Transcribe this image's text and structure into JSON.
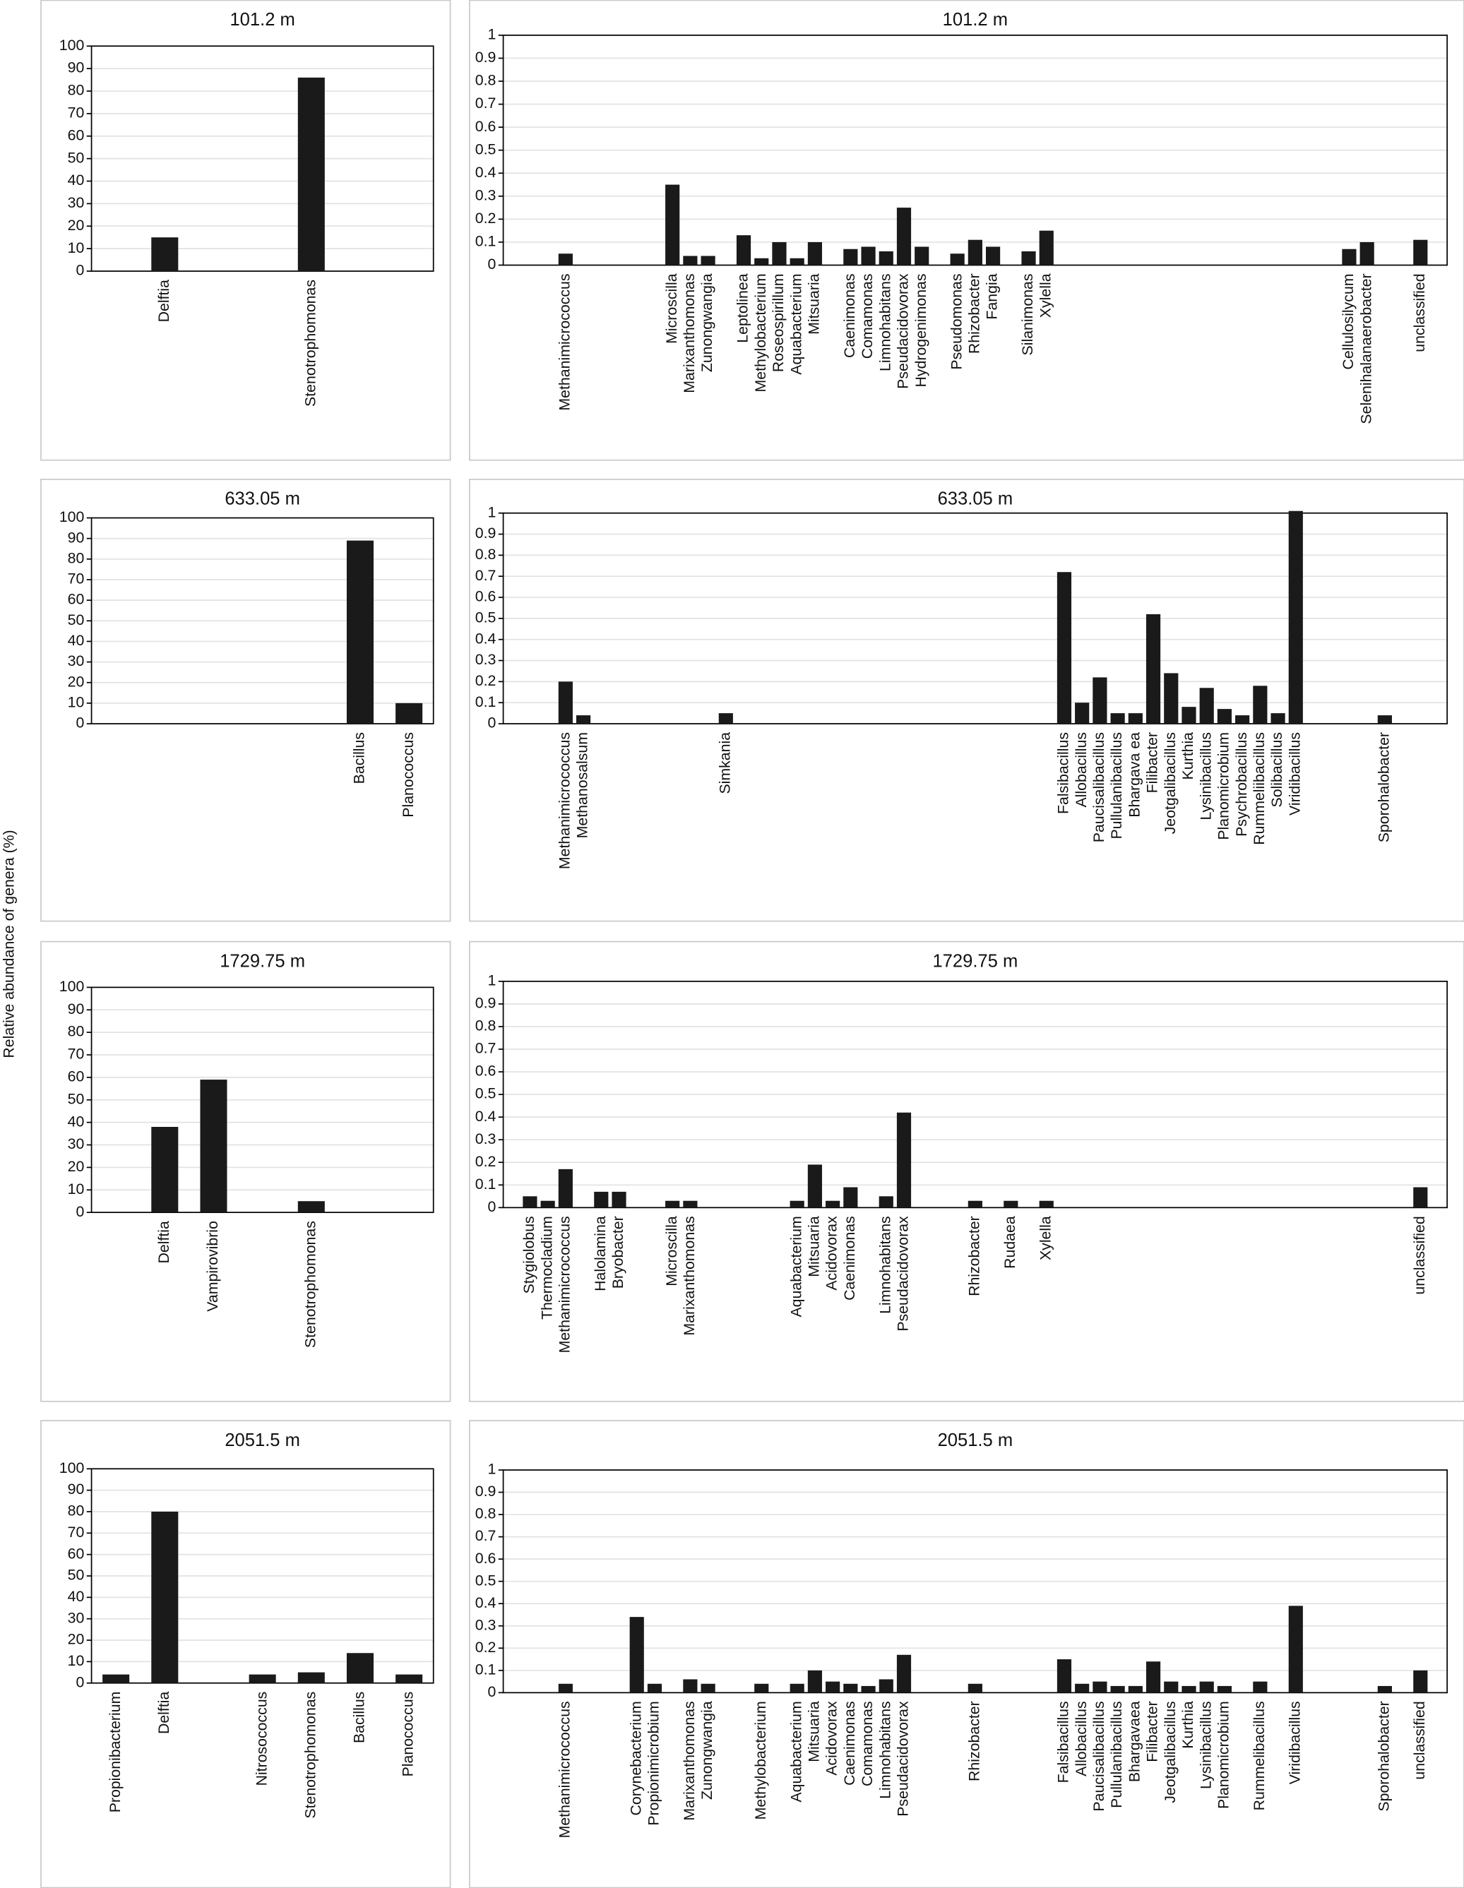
{
  "ylabel": "Relative abundance of genera (%)",
  "chart_data": [
    {
      "type": "bar",
      "title": "101.2 m",
      "color": "#1a1a1a",
      "grid": true,
      "ylim": [
        0,
        100
      ],
      "yticks": [
        0,
        10,
        20,
        30,
        40,
        50,
        60,
        70,
        80,
        90,
        100
      ],
      "categories": [
        null,
        "Delftia",
        null,
        null,
        "Stenotrophomonas",
        null,
        null
      ],
      "values": [
        null,
        15,
        null,
        null,
        86,
        null,
        null
      ]
    },
    {
      "type": "bar",
      "title": "101.2 m",
      "color": "#1a1a1a",
      "grid": true,
      "ylim": [
        0,
        1
      ],
      "yticks": [
        0,
        0.1,
        0.2,
        0.3,
        0.4,
        0.5,
        0.6,
        0.7,
        0.8,
        0.9,
        1
      ],
      "categories": [
        null,
        null,
        null,
        "Methanimicrococcus",
        null,
        null,
        null,
        null,
        null,
        "Microscilla",
        "Marixanthomonas",
        "Zunongwangia",
        null,
        "Leptolinea",
        "Methylobacterium",
        "Roseospirillum",
        "Aquabacterium",
        "Mitsuaria",
        null,
        "Caenimonas",
        "Comamonas",
        "Limnohabitans",
        "Pseudacidovorax",
        "Hydrogenimonas",
        null,
        "Pseudomonas",
        "Rhizobacter",
        "Fangia",
        null,
        "Silanimonas",
        "Xylella",
        null,
        null,
        null,
        null,
        null,
        null,
        null,
        null,
        null,
        null,
        null,
        null,
        null,
        null,
        null,
        null,
        "Cellulosilycum",
        "Selenihalanaerobacter",
        null,
        null,
        "unclassified",
        null
      ],
      "values": [
        null,
        null,
        null,
        0.05,
        null,
        null,
        null,
        null,
        null,
        0.35,
        0.04,
        0.04,
        null,
        0.13,
        0.03,
        0.1,
        0.03,
        0.1,
        null,
        0.07,
        0.08,
        0.06,
        0.25,
        0.08,
        null,
        0.05,
        0.11,
        0.08,
        null,
        0.06,
        0.15,
        null,
        null,
        null,
        null,
        null,
        null,
        null,
        null,
        null,
        null,
        null,
        null,
        null,
        null,
        null,
        null,
        0.07,
        0.1,
        null,
        null,
        0.11,
        null
      ]
    },
    {
      "type": "bar",
      "title": "633.05 m",
      "color": "#1a1a1a",
      "grid": true,
      "ylim": [
        0,
        100
      ],
      "yticks": [
        0,
        10,
        20,
        30,
        40,
        50,
        60,
        70,
        80,
        90,
        100
      ],
      "categories": [
        null,
        null,
        null,
        null,
        null,
        "Bacillus",
        "Planococcus"
      ],
      "values": [
        null,
        null,
        null,
        null,
        null,
        89,
        10
      ]
    },
    {
      "type": "bar",
      "title": "633.05 m",
      "color": "#1a1a1a",
      "grid": true,
      "ylim": [
        0,
        1
      ],
      "yticks": [
        0,
        0.1,
        0.2,
        0.3,
        0.4,
        0.5,
        0.6,
        0.7,
        0.8,
        0.9,
        1
      ],
      "categories": [
        null,
        null,
        null,
        "Methanimicrococcus",
        "Methanosalsum",
        null,
        null,
        null,
        null,
        null,
        null,
        null,
        "Simkania",
        null,
        null,
        null,
        null,
        null,
        null,
        null,
        null,
        null,
        null,
        null,
        null,
        null,
        null,
        null,
        null,
        null,
        null,
        "Falsibacillus",
        "Allobacillus",
        "Paucisalibacillus",
        "Pullulanibacillus",
        "Bhargava ea",
        "Filibacter",
        "Jeotgalibacillus",
        "Kurthia",
        "Lysinibacillus",
        "Planomicrobium",
        "Psychrobacillus",
        "Rummeliibacillus",
        "Solibacillus",
        "Viridibacillus",
        null,
        null,
        null,
        null,
        "Sporohalobacter",
        null,
        null,
        null
      ],
      "values": [
        null,
        null,
        null,
        0.2,
        0.04,
        null,
        null,
        null,
        null,
        null,
        null,
        null,
        0.05,
        null,
        null,
        null,
        null,
        null,
        null,
        null,
        null,
        null,
        null,
        null,
        null,
        null,
        null,
        null,
        null,
        null,
        null,
        0.72,
        0.1,
        0.22,
        0.05,
        0.05,
        0.52,
        0.24,
        0.08,
        0.17,
        0.07,
        0.04,
        0.18,
        0.05,
        1.01,
        null,
        null,
        null,
        null,
        0.04,
        null,
        null,
        null
      ]
    },
    {
      "type": "bar",
      "title": "1729.75 m",
      "color": "#1a1a1a",
      "grid": true,
      "ylim": [
        0,
        100
      ],
      "yticks": [
        0,
        10,
        20,
        30,
        40,
        50,
        60,
        70,
        80,
        90,
        100
      ],
      "categories": [
        null,
        "Delftia",
        "Vampirovibrio",
        null,
        "Stenotrophomonas",
        null,
        null
      ],
      "values": [
        null,
        38,
        59,
        null,
        5,
        null,
        null
      ]
    },
    {
      "type": "bar",
      "title": "1729.75 m",
      "color": "#1a1a1a",
      "grid": true,
      "ylim": [
        0,
        1
      ],
      "yticks": [
        0,
        0.1,
        0.2,
        0.3,
        0.4,
        0.5,
        0.6,
        0.7,
        0.8,
        0.9,
        1
      ],
      "categories": [
        null,
        "Stygiolobus",
        "Thermocladium",
        "Methanimicrococcus",
        null,
        "Halolamina",
        "Bryobacter",
        null,
        null,
        "Microscilla",
        "Marixanthomonas",
        null,
        null,
        null,
        null,
        null,
        "Aquabacterium",
        "Mitsuaria",
        "Acidovorax",
        "Caenimonas",
        null,
        "Limnohabitans",
        "Pseudacidovorax",
        null,
        null,
        null,
        "Rhizobacter",
        null,
        "Rudaea",
        null,
        "Xylella",
        null,
        null,
        null,
        null,
        null,
        null,
        null,
        null,
        null,
        null,
        null,
        null,
        null,
        null,
        null,
        null,
        null,
        null,
        null,
        null,
        "unclassified",
        null
      ],
      "values": [
        null,
        0.05,
        0.03,
        0.17,
        null,
        0.07,
        0.07,
        null,
        null,
        0.03,
        0.03,
        null,
        null,
        null,
        null,
        null,
        0.03,
        0.19,
        0.03,
        0.09,
        null,
        0.05,
        0.42,
        null,
        null,
        null,
        0.03,
        null,
        0.03,
        null,
        0.03,
        null,
        null,
        null,
        null,
        null,
        null,
        null,
        null,
        null,
        null,
        null,
        null,
        null,
        null,
        null,
        null,
        null,
        null,
        null,
        null,
        0.09,
        null
      ]
    },
    {
      "type": "bar",
      "title": "2051.5 m",
      "color": "#1a1a1a",
      "grid": true,
      "ylim": [
        0,
        100
      ],
      "yticks": [
        0,
        10,
        20,
        30,
        40,
        50,
        60,
        70,
        80,
        90,
        100
      ],
      "categories": [
        "Propionibacterium",
        "Delftia",
        null,
        "Nitrosococcus",
        "Stenotrophomonas",
        "Bacillus",
        "Planococcus"
      ],
      "values": [
        4,
        80,
        null,
        4,
        5,
        14,
        4
      ]
    },
    {
      "type": "bar",
      "title": "2051.5 m",
      "color": "#1a1a1a",
      "grid": true,
      "ylim": [
        0,
        1
      ],
      "yticks": [
        0,
        0.1,
        0.2,
        0.3,
        0.4,
        0.5,
        0.6,
        0.7,
        0.8,
        0.9,
        1
      ],
      "categories": [
        null,
        null,
        null,
        "Methanimicrococcus",
        null,
        null,
        null,
        "Corynebacterium",
        "Propionimicrobium",
        null,
        "Marixanthomonas",
        "Zunongwangia",
        null,
        null,
        "Methylobacterium",
        null,
        "Aquabacterium",
        "Mitsuaria",
        "Acidovorax",
        "Caenimonas",
        "Comamonas",
        "Limnohabitans",
        "Pseudacidovorax",
        null,
        null,
        null,
        "Rhizobacter",
        null,
        null,
        null,
        null,
        "Falsibacillus",
        "Allobacillus",
        "Paucisalibacillus",
        "Pullulanibacillus",
        "Bhargavaea",
        "Filibacter",
        "Jeotgalibacillus",
        "Kurthia",
        "Lysinibacillus",
        "Planomicrobium",
        null,
        "Rummelibacillus",
        null,
        "Viridibacillus",
        null,
        null,
        null,
        null,
        "Sporohalobacter",
        null,
        "unclassified",
        null
      ],
      "values": [
        null,
        null,
        null,
        0.04,
        null,
        null,
        null,
        0.34,
        0.04,
        null,
        0.06,
        0.04,
        null,
        null,
        0.04,
        null,
        0.04,
        0.1,
        0.05,
        0.04,
        0.03,
        0.06,
        0.17,
        null,
        null,
        null,
        0.04,
        null,
        null,
        null,
        null,
        0.15,
        0.04,
        0.05,
        0.03,
        0.03,
        0.14,
        0.05,
        0.03,
        0.05,
        0.03,
        null,
        0.05,
        null,
        0.39,
        null,
        null,
        null,
        null,
        0.03,
        null,
        0.1,
        null
      ]
    }
  ]
}
